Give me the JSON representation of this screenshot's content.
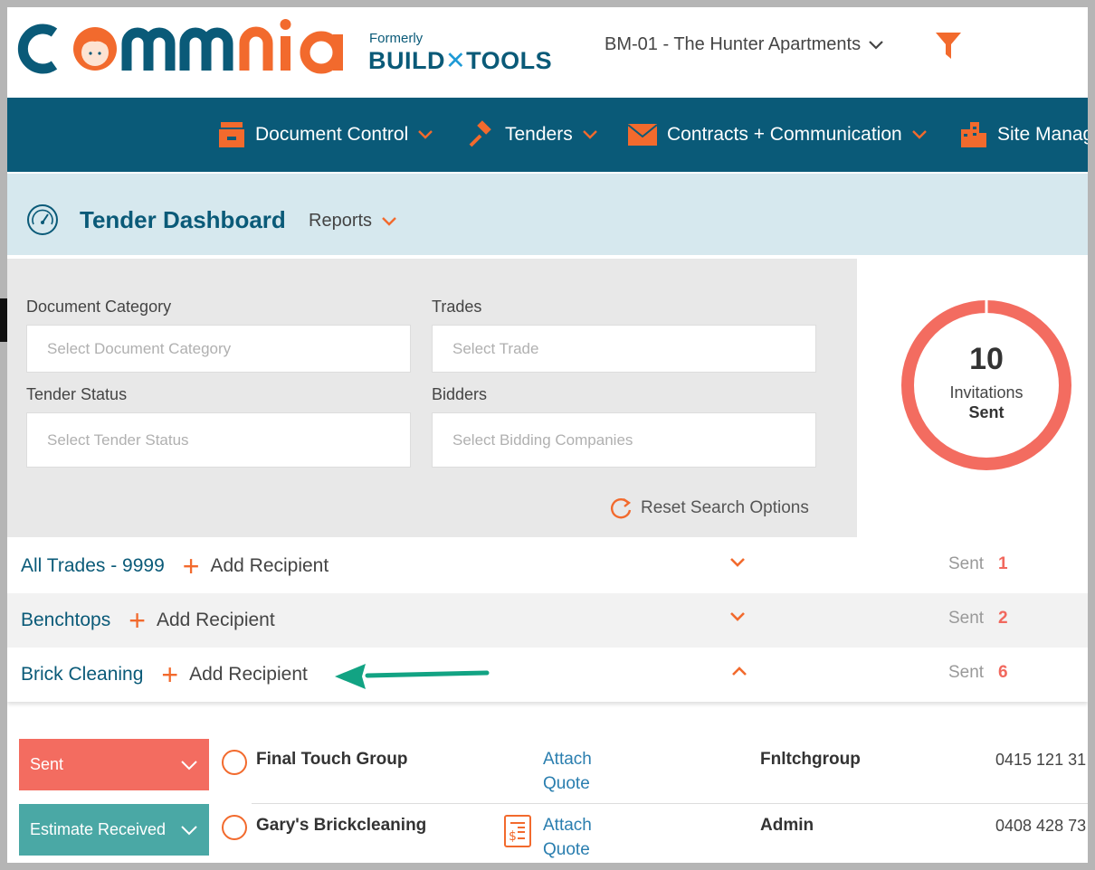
{
  "brand": {
    "logo_text": "commnia",
    "formerly": "Formerly",
    "build": "BUILD",
    "tools": "TOOLS"
  },
  "header": {
    "project": "BM-01 - The Hunter Apartments"
  },
  "nav": {
    "items": [
      {
        "label": "Document Control",
        "icon": "filing-cabinet-icon"
      },
      {
        "label": "Tenders",
        "icon": "gavel-icon"
      },
      {
        "label": "Contracts + Communication",
        "icon": "envelope-icon"
      },
      {
        "label": "Site Manag",
        "icon": "buildings-icon"
      }
    ]
  },
  "page": {
    "title": "Tender Dashboard",
    "reports": "Reports"
  },
  "filters": {
    "document_category": {
      "label": "Document Category",
      "placeholder": "Select Document Category"
    },
    "trades": {
      "label": "Trades",
      "placeholder": "Select Trade"
    },
    "tender_status": {
      "label": "Tender Status",
      "placeholder": "Select Tender Status"
    },
    "bidders": {
      "label": "Bidders",
      "placeholder": "Select Bidding Companies"
    },
    "reset": "Reset Search Options"
  },
  "summary": {
    "count": "10",
    "label": "Invitations",
    "sublabel": "Sent",
    "ring_color": "#f36c60"
  },
  "trades": [
    {
      "name": "All Trades - 9999",
      "add": "Add Recipient",
      "sent_label": "Sent",
      "sent": "1",
      "expanded": false
    },
    {
      "name": "Benchtops",
      "add": "Add Recipient",
      "sent_label": "Sent",
      "sent": "2",
      "expanded": false
    },
    {
      "name": "Brick Cleaning",
      "add": "Add Recipient",
      "sent_label": "Sent",
      "sent": "6",
      "expanded": true
    }
  ],
  "bidders": [
    {
      "status": "Sent",
      "company": "Final Touch Group",
      "attach1": "Attach",
      "attach2": "Quote",
      "contact": "Fnltchgroup",
      "phone": "0415 121 31"
    },
    {
      "status": "Estimate Received",
      "company": "Gary's Brickcleaning",
      "attach1": "Attach",
      "attach2": "Quote",
      "contact": "Admin",
      "phone": "0408 428 73"
    }
  ],
  "colors": {
    "navy": "#0a5a78",
    "orange": "#f26a2d",
    "coral": "#f36c60",
    "teal": "#4aa8a5",
    "arrow": "#12a383"
  }
}
